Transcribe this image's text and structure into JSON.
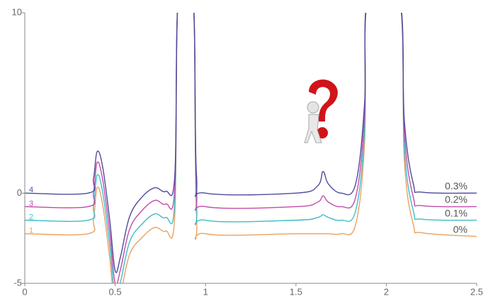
{
  "chart_data": {
    "type": "line",
    "x": [
      0,
      0.35,
      0.38,
      0.4,
      0.43,
      0.47,
      0.5,
      0.53,
      0.58,
      0.65,
      0.72,
      0.78,
      0.83,
      0.85,
      0.93,
      0.95,
      1,
      1.5,
      1.62,
      1.65,
      1.68,
      1.75,
      1.83,
      1.88,
      1.9,
      2.07,
      2.1,
      2.15,
      2.2,
      2.5
    ],
    "series": [
      {
        "name": "0%",
        "id": "1",
        "color": "#e8a163",
        "values": [
          -2.25,
          -2.25,
          -1.45,
          0.3,
          -0.6,
          -3.6,
          -6.5,
          -5.6,
          -3.4,
          -2.45,
          -1.9,
          -2.1,
          -1.2,
          11,
          11,
          -1.2,
          -2.25,
          -2.25,
          -2.25,
          -2.25,
          -2.25,
          -2.25,
          -1.75,
          2.8,
          11,
          11,
          1.8,
          -1.75,
          -2.2,
          -2.4
        ]
      },
      {
        "name": "0.1%",
        "id": "2",
        "color": "#3dbcc8",
        "values": [
          -1.5,
          -1.5,
          -0.7,
          1.0,
          0.1,
          -2.9,
          -5.8,
          -4.9,
          -2.7,
          -1.7,
          -1.15,
          -1.35,
          -0.45,
          11,
          11,
          -0.45,
          -1.5,
          -1.5,
          -1.35,
          -1.2,
          -1.35,
          -1.5,
          -1,
          3.5,
          11,
          11,
          2.5,
          -1,
          -1.45,
          -1.5
        ]
      },
      {
        "name": "0.2%",
        "id": "3",
        "color": "#c24aa9",
        "values": [
          -0.75,
          -0.75,
          0.05,
          1.7,
          0.8,
          -2.2,
          -5,
          -4.2,
          -2,
          -0.95,
          -0.4,
          -0.6,
          0.3,
          11,
          11,
          0.3,
          -0.75,
          -0.75,
          -0.5,
          -0.15,
          -0.5,
          -0.75,
          -0.25,
          4.3,
          11,
          11,
          3.3,
          -0.25,
          -0.7,
          -0.75
        ]
      },
      {
        "name": "0.3%",
        "id": "4",
        "color": "#4d4b9b",
        "values": [
          0,
          0,
          0.8,
          2.3,
          1.5,
          -1.5,
          -4.3,
          -3.5,
          -1.3,
          -0.2,
          0.3,
          0.1,
          1,
          11,
          11,
          1,
          0,
          0,
          0.4,
          1.2,
          0.5,
          0,
          0.5,
          5,
          11,
          11,
          4,
          0.5,
          0.05,
          0
        ]
      }
    ],
    "xlim": [
      0,
      2.5
    ],
    "xticks": [
      0,
      0.5,
      1,
      1.5,
      2,
      2.5
    ],
    "ylim": [
      -5,
      10
    ],
    "yticks": [
      -5,
      0,
      10
    ]
  }
}
